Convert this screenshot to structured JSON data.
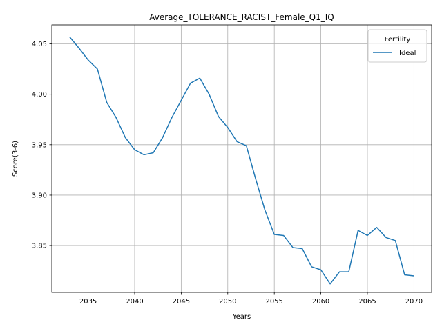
{
  "chart_data": {
    "type": "line",
    "title": "Average_TOLERANCE_RACIST_Female_Q1_IQ",
    "xlabel": "Years",
    "ylabel": "Score(3-6)",
    "xlim": [
      2031.1,
      2071.9
    ],
    "ylim": [
      3.8036,
      4.0688
    ],
    "xticks": [
      2035,
      2040,
      2045,
      2050,
      2055,
      2060,
      2065,
      2070
    ],
    "yticks": [
      3.85,
      3.9,
      3.95,
      4.0,
      4.05
    ],
    "xtick_labels": [
      "2035",
      "2040",
      "2045",
      "2050",
      "2055",
      "2060",
      "2065",
      "2070"
    ],
    "ytick_labels": [
      "3.85",
      "3.90",
      "3.95",
      "4.00",
      "4.05"
    ],
    "grid": true,
    "legend": {
      "title": "Fertility",
      "position": "top-right"
    },
    "series": [
      {
        "name": "Ideal",
        "color": "#1f77b4",
        "x": [
          2033,
          2034,
          2035,
          2036,
          2037,
          2038,
          2039,
          2040,
          2041,
          2042,
          2043,
          2044,
          2045,
          2046,
          2047,
          2048,
          2049,
          2050,
          2051,
          2052,
          2053,
          2054,
          2055,
          2056,
          2057,
          2058,
          2059,
          2060,
          2061,
          2062,
          2063,
          2064,
          2065,
          2066,
          2067,
          2068,
          2069,
          2070
        ],
        "y": [
          4.057,
          4.046,
          4.034,
          4.025,
          3.992,
          3.977,
          3.957,
          3.945,
          3.94,
          3.942,
          3.957,
          3.977,
          3.994,
          4.011,
          4.016,
          4.0,
          3.978,
          3.967,
          3.953,
          3.949,
          3.916,
          3.885,
          3.861,
          3.86,
          3.848,
          3.847,
          3.829,
          3.826,
          3.812,
          3.824,
          3.824,
          3.865,
          3.86,
          3.868,
          3.858,
          3.855,
          3.821,
          3.82
        ]
      }
    ]
  }
}
